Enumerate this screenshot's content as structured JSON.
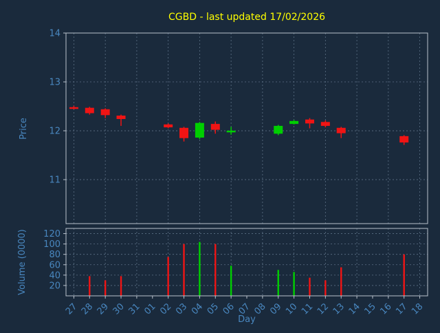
{
  "title": "CGBD - last updated 17/02/2026",
  "xlabel": "Day",
  "price_ylabel": "Price",
  "volume_ylabel": "Volume (0000)",
  "colors": {
    "background": "#1a2a3c",
    "up": "#00cf00",
    "down": "#f01414",
    "text": "#4987bf",
    "title": "#ffff00",
    "grid": "#5d7186",
    "spine": "#b9c2cc"
  },
  "chart_data": {
    "type": "candlestick+volume",
    "categories": [
      "27",
      "28",
      "29",
      "30",
      "31",
      "01",
      "02",
      "03",
      "04",
      "05",
      "06",
      "07",
      "08",
      "09",
      "10",
      "11",
      "12",
      "13",
      "14",
      "15",
      "16",
      "17",
      "18"
    ],
    "price_axis": {
      "min": 10.1,
      "max": 14.0,
      "ticks": [
        11,
        12,
        13,
        14
      ]
    },
    "volume_axis": {
      "min": 0,
      "max": 130,
      "ticks": [
        20,
        40,
        60,
        80,
        100,
        120
      ]
    },
    "candles": [
      {
        "day": "27",
        "open": 12.48,
        "high": 12.51,
        "low": 12.44,
        "close": 12.45,
        "volume": 0
      },
      {
        "day": "28",
        "open": 12.47,
        "high": 12.49,
        "low": 12.33,
        "close": 12.36,
        "volume": 38
      },
      {
        "day": "29",
        "open": 12.44,
        "high": 12.46,
        "low": 12.26,
        "close": 12.32,
        "volume": 30
      },
      {
        "day": "30",
        "open": 12.31,
        "high": 12.33,
        "low": 12.1,
        "close": 12.24,
        "volume": 38
      },
      {
        "day": "02",
        "open": 12.13,
        "high": 12.15,
        "low": 12.05,
        "close": 12.07,
        "volume": 75
      },
      {
        "day": "03",
        "open": 12.06,
        "high": 12.08,
        "low": 11.78,
        "close": 11.85,
        "volume": 100
      },
      {
        "day": "04",
        "open": 11.86,
        "high": 12.18,
        "low": 11.83,
        "close": 12.16,
        "volume": 104
      },
      {
        "day": "05",
        "open": 12.14,
        "high": 12.19,
        "low": 11.94,
        "close": 12.02,
        "volume": 100
      },
      {
        "day": "06",
        "open": 11.97,
        "high": 12.08,
        "low": 11.92,
        "close": 12.0,
        "volume": 58
      },
      {
        "day": "09",
        "open": 11.94,
        "high": 12.12,
        "low": 11.91,
        "close": 12.1,
        "volume": 50
      },
      {
        "day": "10",
        "open": 12.14,
        "high": 12.22,
        "low": 12.13,
        "close": 12.2,
        "volume": 46
      },
      {
        "day": "11",
        "open": 12.23,
        "high": 12.26,
        "low": 12.05,
        "close": 12.15,
        "volume": 35
      },
      {
        "day": "12",
        "open": 12.18,
        "high": 12.21,
        "low": 12.07,
        "close": 12.1,
        "volume": 30
      },
      {
        "day": "13",
        "open": 12.06,
        "high": 12.08,
        "low": 11.85,
        "close": 11.95,
        "volume": 55
      },
      {
        "day": "17",
        "open": 11.89,
        "high": 11.91,
        "low": 11.71,
        "close": 11.76,
        "volume": 80
      }
    ]
  }
}
